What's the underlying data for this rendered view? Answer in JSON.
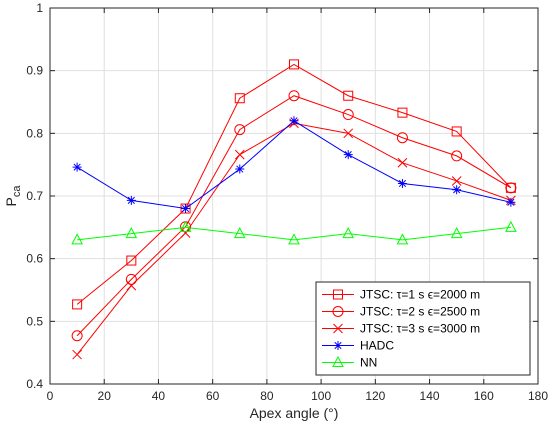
{
  "chart_data": {
    "type": "line",
    "title": "",
    "xlabel": "Apex angle (°)",
    "ylabel_main": "P",
    "ylabel_sub": "ca",
    "xlim": [
      0,
      180
    ],
    "ylim": [
      0.4,
      1.0
    ],
    "xticks": [
      0,
      20,
      40,
      60,
      80,
      100,
      120,
      140,
      160,
      180
    ],
    "yticks": [
      0.4,
      0.5,
      0.6,
      0.7,
      0.8,
      0.9,
      1.0
    ],
    "ytick_labels": [
      "0.4",
      "0.5",
      "0.6",
      "0.7",
      "0.8",
      "0.9",
      "1"
    ],
    "grid": true,
    "legend_position": "bottom-right",
    "series": [
      {
        "name": "JTSC: τ=1 s ϵ=2000 m",
        "color": "#ff0000",
        "marker": "square",
        "x": [
          10,
          30,
          50,
          70,
          90,
          110,
          130,
          150,
          170
        ],
        "values": [
          0.527,
          0.597,
          0.68,
          0.856,
          0.91,
          0.86,
          0.833,
          0.803,
          0.713
        ]
      },
      {
        "name": "JTSC: τ=2 s ϵ=2500 m",
        "color": "#ff0000",
        "marker": "circle",
        "x": [
          10,
          30,
          50,
          70,
          90,
          110,
          130,
          150,
          170
        ],
        "values": [
          0.477,
          0.567,
          0.651,
          0.806,
          0.86,
          0.83,
          0.793,
          0.764,
          0.713
        ]
      },
      {
        "name": "JTSC: τ=3 s ϵ=3000 m",
        "color": "#ff0000",
        "marker": "x",
        "x": [
          10,
          30,
          50,
          70,
          90,
          110,
          130,
          150,
          170
        ],
        "values": [
          0.447,
          0.557,
          0.641,
          0.766,
          0.816,
          0.8,
          0.753,
          0.724,
          0.693
        ]
      },
      {
        "name": "HADC",
        "color": "#0000ff",
        "marker": "asterisk",
        "x": [
          10,
          30,
          50,
          70,
          90,
          110,
          130,
          150,
          170
        ],
        "values": [
          0.746,
          0.693,
          0.68,
          0.743,
          0.82,
          0.766,
          0.72,
          0.71,
          0.69
        ]
      },
      {
        "name": "NN",
        "color": "#00ff00",
        "marker": "triangle",
        "x": [
          10,
          30,
          50,
          70,
          90,
          110,
          130,
          150,
          170
        ],
        "values": [
          0.63,
          0.64,
          0.65,
          0.64,
          0.63,
          0.64,
          0.63,
          0.64,
          0.65
        ]
      }
    ]
  }
}
